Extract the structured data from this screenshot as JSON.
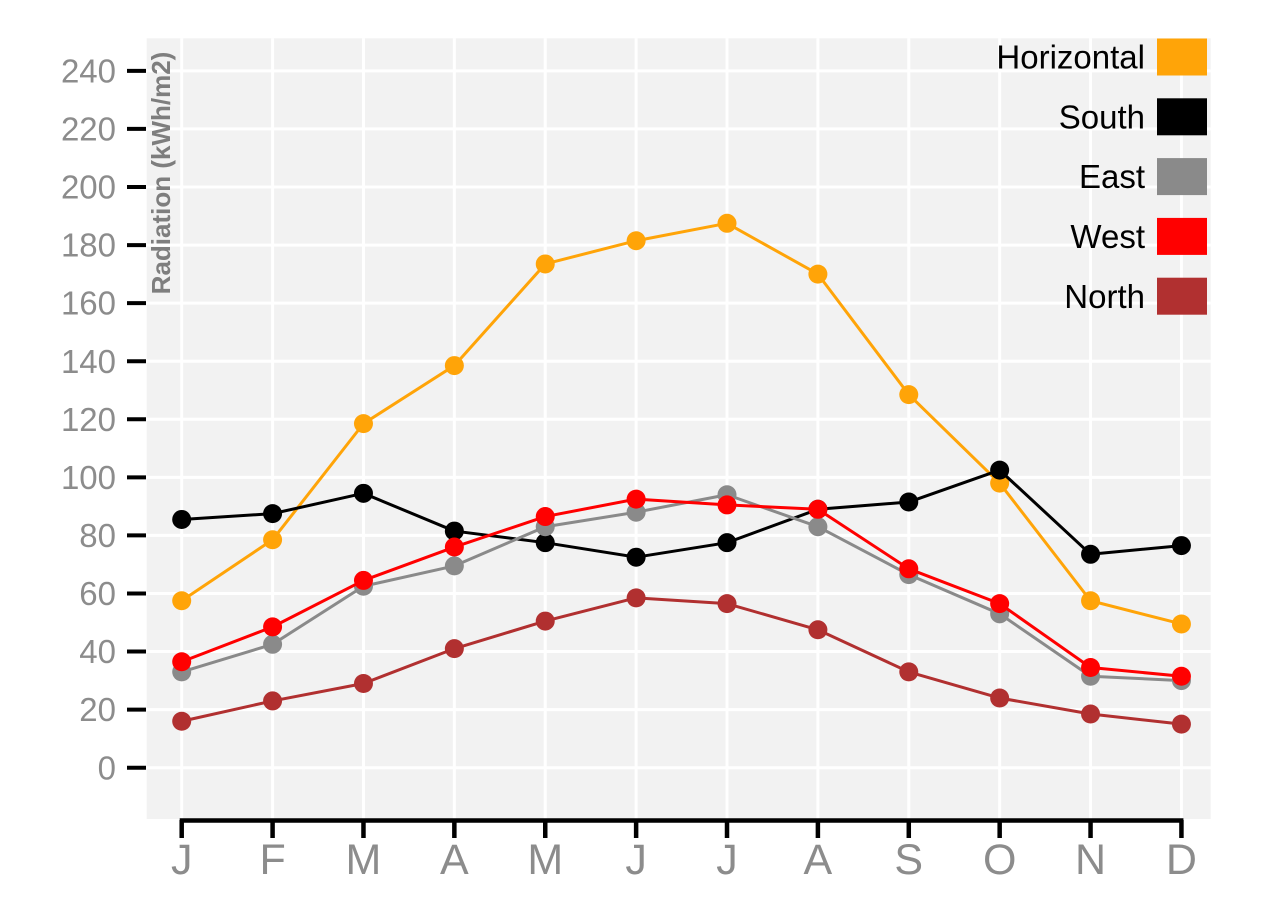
{
  "chart_data": {
    "type": "line",
    "title": "",
    "xlabel": "",
    "ylabel": "Radiation (kWh/m2)",
    "categories": [
      "J",
      "F",
      "M",
      "A",
      "M",
      "J",
      "J",
      "A",
      "S",
      "O",
      "N",
      "D"
    ],
    "y_ticks": [
      0,
      20,
      40,
      60,
      80,
      100,
      120,
      140,
      160,
      180,
      200,
      220,
      240
    ],
    "ylim": [
      -17,
      251
    ],
    "grid": true,
    "legend_position": "top-right-inside",
    "series": [
      {
        "name": "Horizontal",
        "color": "#FFA408",
        "values": [
          57.5,
          78.5,
          118.5,
          138.5,
          173.5,
          181.5,
          187.5,
          170,
          128.5,
          98,
          57.5,
          49.5
        ]
      },
      {
        "name": "South",
        "color": "#000000",
        "values": [
          85.5,
          87.5,
          94.5,
          81.5,
          77.5,
          72.5,
          77.5,
          89,
          91.5,
          102.5,
          73.5,
          76.5
        ]
      },
      {
        "name": "East",
        "color": "#8A8A8A",
        "values": [
          33,
          42.5,
          62.5,
          69.5,
          83,
          88,
          94,
          83,
          66.5,
          53,
          31.5,
          30
        ]
      },
      {
        "name": "West",
        "color": "#FF0000",
        "values": [
          36.5,
          48.5,
          64.5,
          76,
          86.5,
          92.5,
          90.5,
          89,
          68.5,
          56.5,
          34.5,
          31.5
        ]
      },
      {
        "name": "North",
        "color": "#B13030",
        "values": [
          16,
          23,
          29,
          41,
          50.5,
          58.5,
          56.5,
          47.5,
          33,
          24,
          18.5,
          15
        ]
      }
    ],
    "colors": {
      "page_bg": "#FFFFFF",
      "panel_bg": "#F2F2F2",
      "gridline": "#FFFFFF",
      "axis": "#000000",
      "tick_label": "#8C8C8C",
      "month_label": "#8C8C8C",
      "axis_title": "#7E7E7E",
      "legend_label": "#000000"
    }
  }
}
